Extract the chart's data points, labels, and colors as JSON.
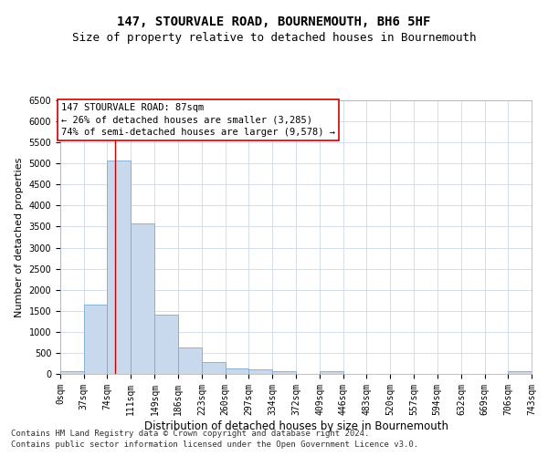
{
  "title": "147, STOURVALE ROAD, BOURNEMOUTH, BH6 5HF",
  "subtitle": "Size of property relative to detached houses in Bournemouth",
  "xlabel": "Distribution of detached houses by size in Bournemouth",
  "ylabel": "Number of detached properties",
  "bar_color": "#c8d9ee",
  "bar_edge_color": "#7aaad0",
  "background_color": "#ffffff",
  "grid_color": "#d0d8e8",
  "annotation_text": "147 STOURVALE ROAD: 87sqm\n← 26% of detached houses are smaller (3,285)\n74% of semi-detached houses are larger (9,578) →",
  "vline_x": 87,
  "vline_color": "#cc0000",
  "ylim": [
    0,
    6500
  ],
  "yticks": [
    0,
    500,
    1000,
    1500,
    2000,
    2500,
    3000,
    3500,
    4000,
    4500,
    5000,
    5500,
    6000,
    6500
  ],
  "bin_edges": [
    0,
    37,
    74,
    111,
    149,
    186,
    223,
    260,
    297,
    334,
    372,
    409,
    446,
    483,
    520,
    557,
    594,
    632,
    669,
    706,
    743
  ],
  "bar_heights": [
    75,
    1640,
    5060,
    3580,
    1400,
    620,
    290,
    130,
    100,
    75,
    0,
    65,
    0,
    0,
    0,
    0,
    0,
    0,
    0,
    60
  ],
  "tick_labels": [
    "0sqm",
    "37sqm",
    "74sqm",
    "111sqm",
    "149sqm",
    "186sqm",
    "223sqm",
    "260sqm",
    "297sqm",
    "334sqm",
    "372sqm",
    "409sqm",
    "446sqm",
    "483sqm",
    "520sqm",
    "557sqm",
    "594sqm",
    "632sqm",
    "669sqm",
    "706sqm",
    "743sqm"
  ],
  "footer_line1": "Contains HM Land Registry data © Crown copyright and database right 2024.",
  "footer_line2": "Contains public sector information licensed under the Open Government Licence v3.0.",
  "title_fontsize": 10,
  "subtitle_fontsize": 9,
  "axis_label_fontsize": 8.5,
  "tick_fontsize": 7,
  "annotation_fontsize": 7.5,
  "footer_fontsize": 6.5,
  "ylabel_fontsize": 8
}
